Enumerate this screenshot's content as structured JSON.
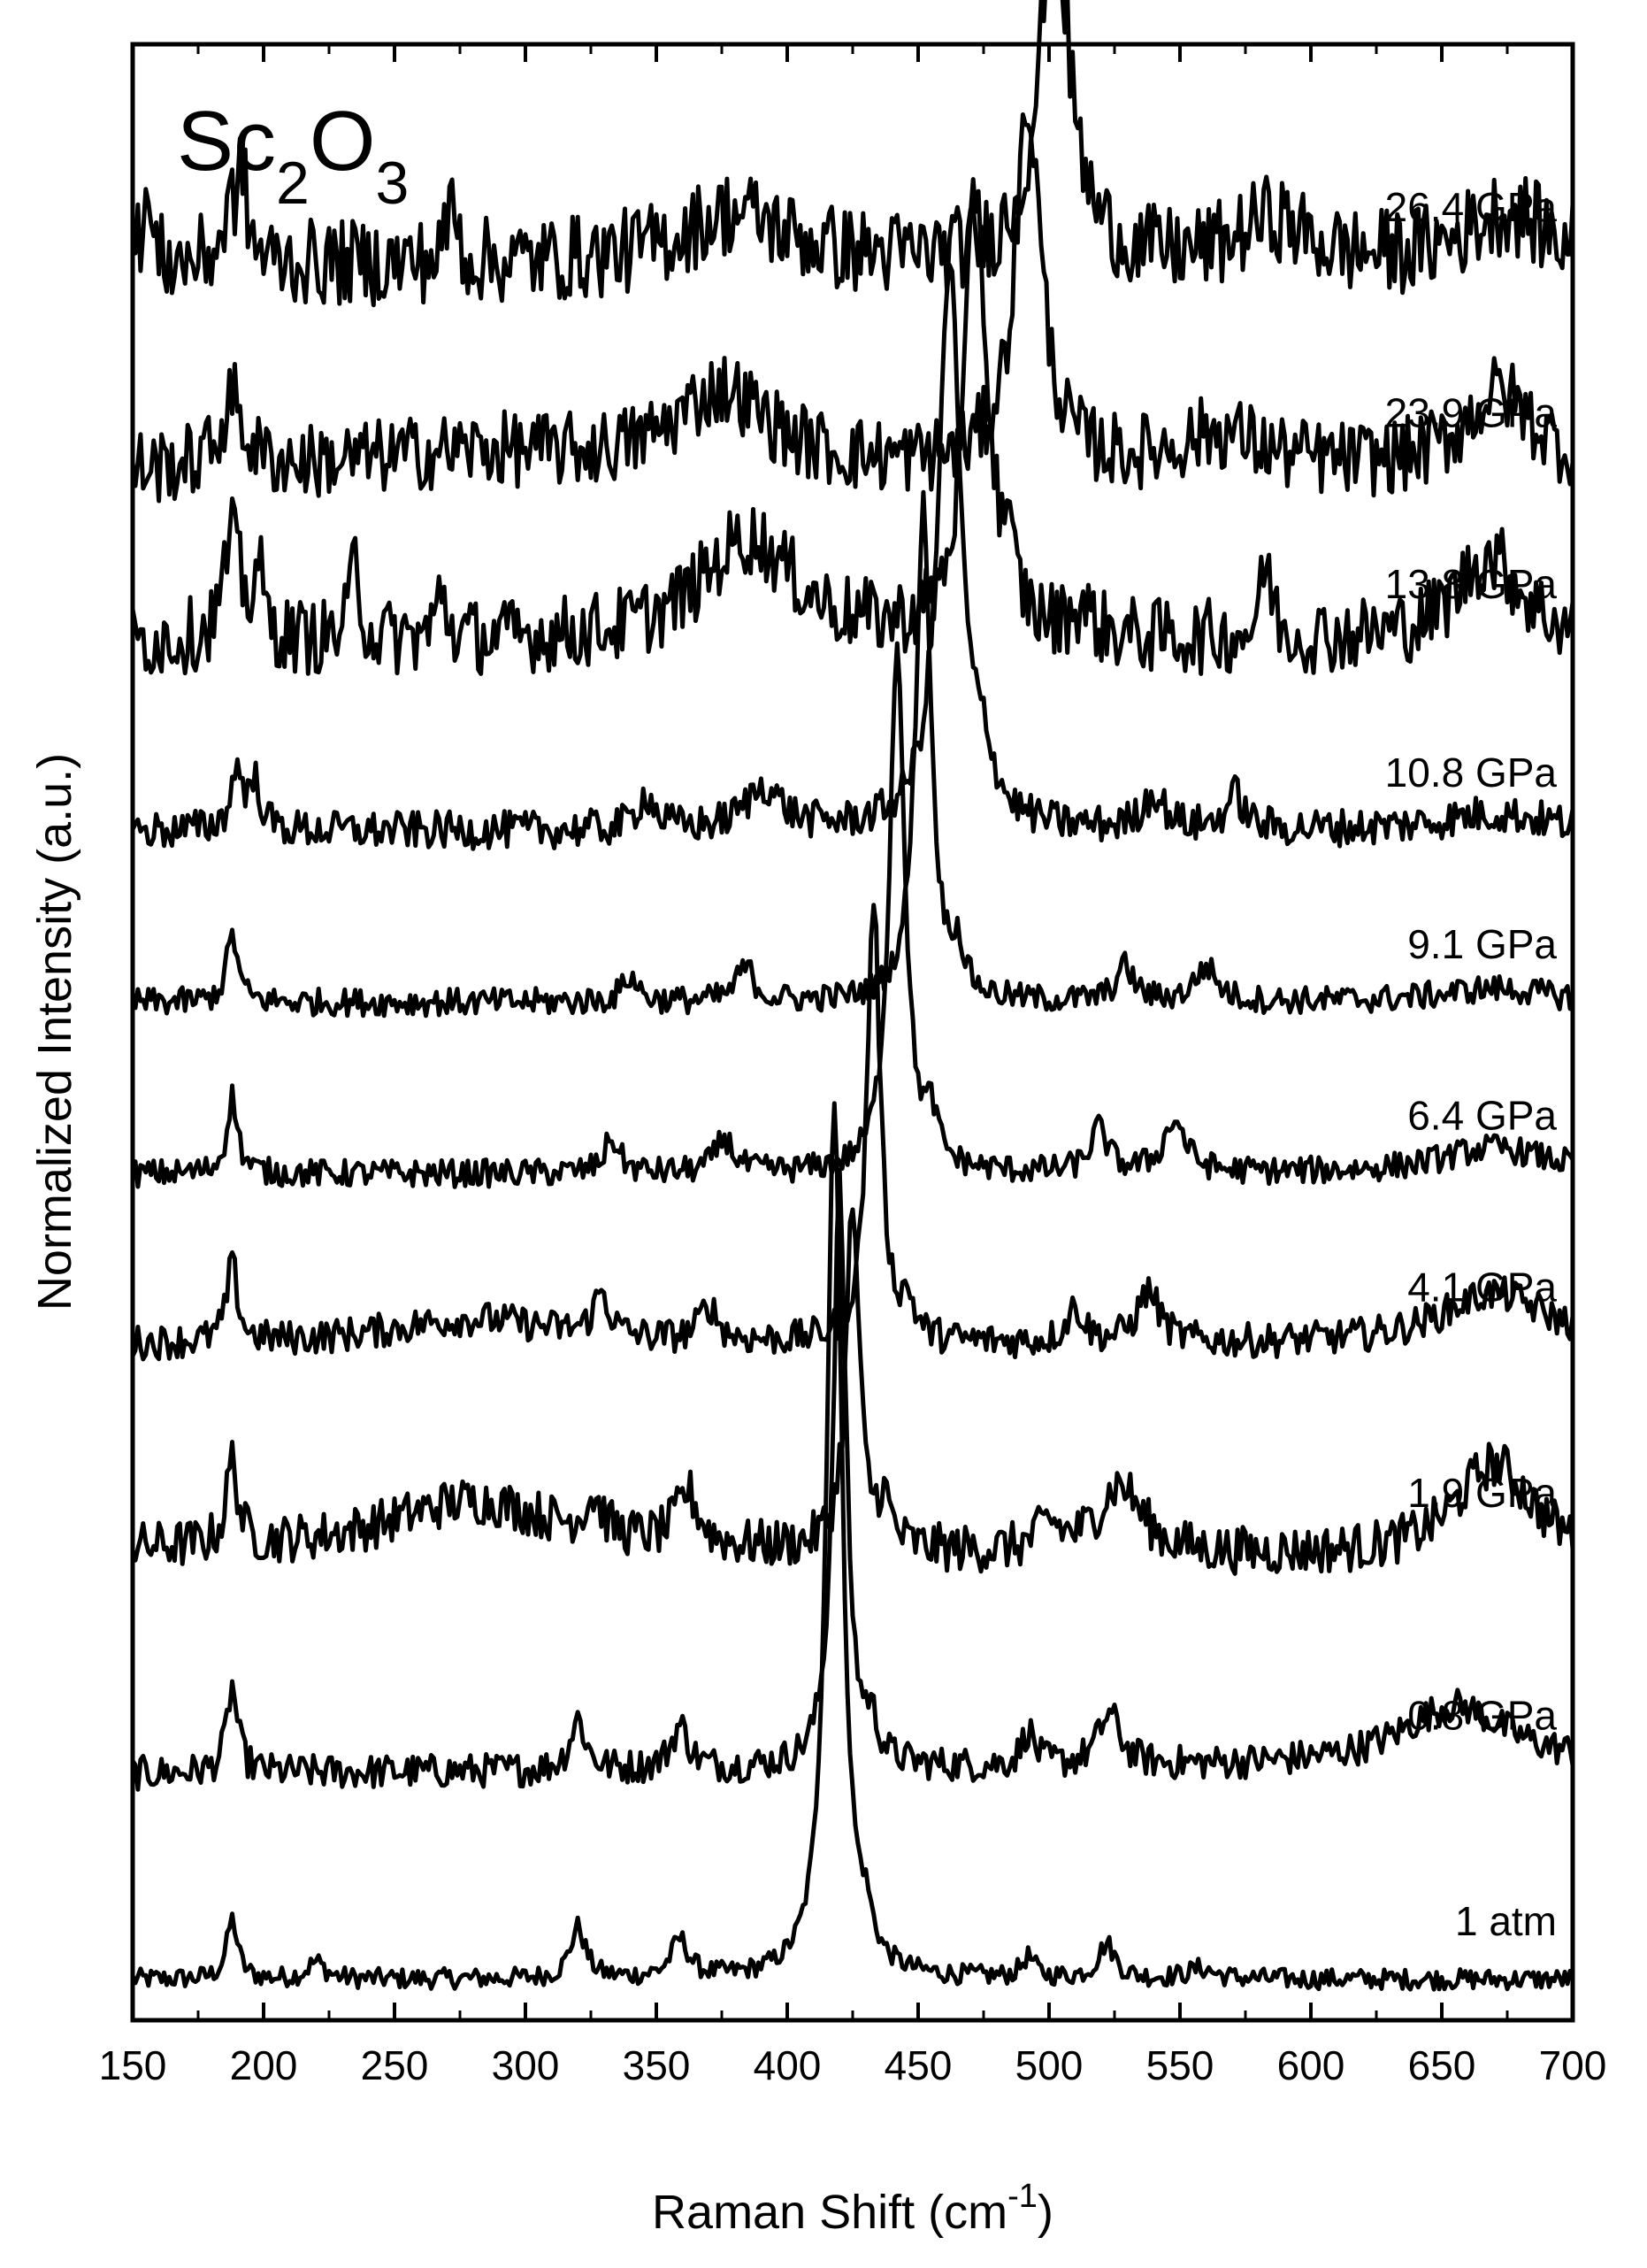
{
  "chart_data": {
    "type": "line",
    "sample": {
      "base": "Sc",
      "sub1": "2",
      "mid": "O",
      "sub2": "3"
    },
    "xlabel": {
      "text": "Raman Shift (cm",
      "sup": "-1",
      "end": ")"
    },
    "ylabel": "Normalized Intensity (a.u.)",
    "xlim": [
      150,
      700
    ],
    "xticks": [
      "150",
      "200",
      "250",
      "300",
      "350",
      "400",
      "450",
      "500",
      "550",
      "600",
      "650",
      "700"
    ],
    "y_tick_labels": false,
    "colors": {
      "trace": "#000000",
      "axes": "#000000",
      "background": "#ffffff"
    },
    "series": [
      {
        "name": "1 atm",
        "baseline": 0.0,
        "noise": 0.006,
        "peaks": [
          [
            188,
            0.035,
            2.5
          ],
          [
            220,
            0.01,
            4
          ],
          [
            320,
            0.03,
            3.5
          ],
          [
            359,
            0.022,
            4
          ],
          [
            418,
            0.515,
            3.5
          ],
          [
            430,
            0.02,
            3
          ],
          [
            492,
            0.012,
            3
          ],
          [
            522,
            0.02,
            4
          ],
          [
            558,
            0.006,
            6
          ]
        ]
      },
      {
        "name": "0.8 GPa",
        "baseline": 0.12,
        "noise": 0.01,
        "tilt": 0.005,
        "peaks": [
          [
            188,
            0.05,
            2.5
          ],
          [
            320,
            0.03,
            3.5
          ],
          [
            359,
            0.025,
            4
          ],
          [
            420,
            0.34,
            3
          ],
          [
            432,
            0.02,
            3
          ],
          [
            492,
            0.02,
            3
          ],
          [
            523,
            0.03,
            5
          ],
          [
            655,
            0.035,
            25
          ]
        ]
      },
      {
        "name": "1.9 GPa",
        "baseline": 0.25,
        "noise": 0.014,
        "tilt": -0.005,
        "peaks": [
          [
            188,
            0.05,
            2.5
          ],
          [
            280,
            0.03,
            40
          ],
          [
            326,
            0.02,
            4
          ],
          [
            362,
            0.03,
            5
          ],
          [
            425,
            0.2,
            3
          ],
          [
            437,
            0.025,
            3
          ],
          [
            500,
            0.015,
            5
          ],
          [
            527,
            0.04,
            10
          ],
          [
            670,
            0.055,
            18
          ]
        ]
      },
      {
        "name": "4.1 GPa",
        "baseline": 0.37,
        "noise": 0.01,
        "peaks": [
          [
            188,
            0.045,
            2.5
          ],
          [
            280,
            0.015,
            40
          ],
          [
            329,
            0.025,
            3.5
          ],
          [
            370,
            0.02,
            4
          ],
          [
            433,
            0.26,
            3
          ],
          [
            446,
            0.02,
            3
          ],
          [
            510,
            0.02,
            4
          ],
          [
            538,
            0.03,
            5
          ],
          [
            670,
            0.03,
            25
          ]
        ]
      },
      {
        "name": "6.4 GPa",
        "baseline": 0.47,
        "noise": 0.008,
        "peaks": [
          [
            188,
            0.045,
            2.5
          ],
          [
            333,
            0.02,
            3.5
          ],
          [
            376,
            0.02,
            4
          ],
          [
            442,
            0.31,
            3.5
          ],
          [
            455,
            0.025,
            3
          ],
          [
            519,
            0.025,
            4
          ],
          [
            548,
            0.03,
            5
          ],
          [
            670,
            0.015,
            25
          ]
        ]
      },
      {
        "name": "9.1 GPa",
        "baseline": 0.57,
        "noise": 0.008,
        "peaks": [
          [
            188,
            0.04,
            2.5
          ],
          [
            340,
            0.015,
            3.5
          ],
          [
            384,
            0.02,
            4
          ],
          [
            452,
            0.29,
            3.5
          ],
          [
            465,
            0.025,
            3
          ],
          [
            529,
            0.02,
            4
          ],
          [
            560,
            0.02,
            5
          ],
          [
            670,
            0.008,
            25
          ]
        ]
      },
      {
        "name": "10.8 GPa",
        "baseline": 0.67,
        "noise": 0.011,
        "peaks": [
          [
            190,
            0.035,
            3
          ],
          [
            197,
            0.025,
            2.5
          ],
          [
            346,
            0.02,
            4
          ],
          [
            391,
            0.025,
            8
          ],
          [
            462,
            0.33,
            5
          ],
          [
            475,
            0.03,
            4
          ],
          [
            540,
            0.02,
            5
          ],
          [
            571,
            0.02,
            4
          ],
          [
            670,
            0.01,
            25
          ]
        ]
      },
      {
        "name": "13.8 GPa",
        "baseline": 0.78,
        "noise": 0.022,
        "peaks": [
          [
            188,
            0.06,
            4
          ],
          [
            198,
            0.04,
            2
          ],
          [
            235,
            0.05,
            2
          ],
          [
            268,
            0.03,
            2
          ],
          [
            385,
            0.06,
            22
          ],
          [
            472,
            0.26,
            5
          ],
          [
            484,
            0.03,
            4
          ],
          [
            512,
            0.015,
            5
          ],
          [
            583,
            0.045,
            2.5
          ],
          [
            668,
            0.05,
            15
          ]
        ]
      },
      {
        "name": "23.9 GPa",
        "baseline": 0.88,
        "noise": 0.022,
        "peaks": [
          [
            188,
            0.04,
            5
          ],
          [
            280,
            0.01,
            50
          ],
          [
            375,
            0.045,
            22
          ],
          [
            492,
            0.21,
            6
          ],
          [
            565,
            0.02,
            20
          ],
          [
            672,
            0.045,
            16
          ]
        ]
      },
      {
        "name": "26.4 GPa",
        "baseline": 1.0,
        "noise": 0.025,
        "peaks": [
          [
            155,
            0.04,
            2
          ],
          [
            188,
            0.03,
            4
          ],
          [
            192,
            0.04,
            2
          ],
          [
            272,
            0.04,
            2
          ],
          [
            380,
            0.03,
            25
          ],
          [
            502,
            0.2,
            7
          ],
          [
            585,
            0.025,
            15
          ],
          [
            675,
            0.03,
            20
          ]
        ]
      }
    ]
  }
}
